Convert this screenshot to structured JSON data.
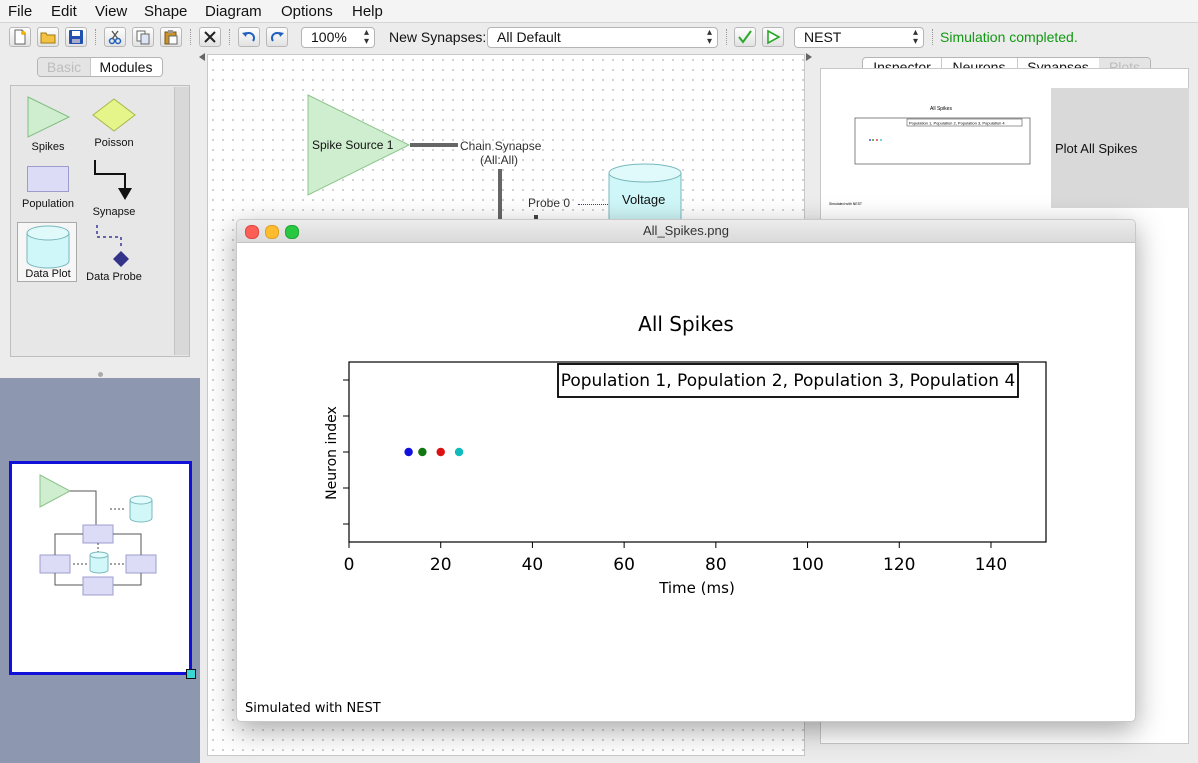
{
  "menu": [
    "File",
    "Edit",
    "View",
    "Shape",
    "Diagram",
    "Options",
    "Help"
  ],
  "toolbar": {
    "zoom": "100%",
    "new_synapses_label": "New Synapses:",
    "new_synapses_value": "All Default",
    "simulator": "NEST",
    "status": "Simulation completed.",
    "status_color": "#119911",
    "icons": [
      "new-file-icon",
      "open-folder-icon",
      "save-icon",
      "cut-icon",
      "copy-icon",
      "paste-icon",
      "delete-icon",
      "undo-icon",
      "redo-icon",
      "check-icon",
      "run-icon"
    ]
  },
  "left_tabs": [
    {
      "label": "Basic",
      "enabled": false
    },
    {
      "label": "Modules",
      "enabled": true
    }
  ],
  "palette": {
    "spikes": "Spikes",
    "poisson": "Poisson",
    "population": "Population",
    "synapse": "Synapse",
    "data_plot": "Data Plot",
    "data_probe": "Data Probe"
  },
  "diagram": {
    "spike_source": "Spike Source 1",
    "chain_synapse_line1": "Chain Synapse",
    "chain_synapse_line2": "(All:All)",
    "probe": "Probe 0",
    "voltage": "Voltage"
  },
  "right_tabs": [
    {
      "label": "Inspector",
      "enabled": true
    },
    {
      "label": "Neurons",
      "enabled": true
    },
    {
      "label": "Synapses",
      "enabled": true
    },
    {
      "label": "Plots",
      "enabled": false
    }
  ],
  "plots_list": [
    {
      "label": "Plot All Spikes"
    }
  ],
  "image_window": {
    "title": "All_Spikes.png",
    "footer": "Simulated with NEST"
  },
  "chart_data": {
    "type": "scatter",
    "title": "All Spikes",
    "xlabel": "Time (ms)",
    "ylabel": "Neuron index",
    "xlim": [
      0,
      152
    ],
    "xticks": [
      0,
      20,
      40,
      60,
      80,
      100,
      120,
      140
    ],
    "legend": "Population 1, Population 2, Population 3, Population 4",
    "legend_placement": "top-right",
    "series": [
      {
        "color": "#1010e0",
        "x": [
          13
        ],
        "y": [
          0
        ]
      },
      {
        "color": "#117711",
        "x": [
          16
        ],
        "y": [
          0
        ]
      },
      {
        "color": "#dd1111",
        "x": [
          20
        ],
        "y": [
          0
        ]
      },
      {
        "color": "#11bbbb",
        "x": [
          24
        ],
        "y": [
          0
        ]
      }
    ]
  }
}
